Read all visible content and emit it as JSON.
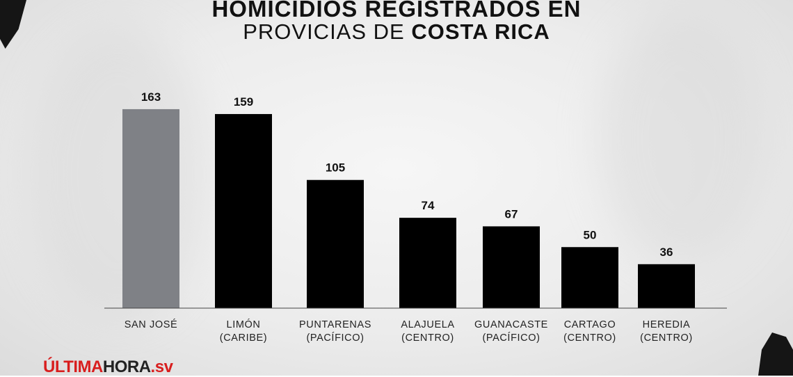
{
  "header": {
    "title_line1": "HOMICIDIOS REGISTRADOS EN",
    "title_line2_regular": "PROVICIAS DE",
    "title_line2_bold": "COSTA RICA"
  },
  "chart_data": {
    "type": "bar",
    "categories": [
      [
        "SAN JOSÉ"
      ],
      [
        "LIMÓN",
        "(CARIBE)"
      ],
      [
        "PUNTARENAS",
        "(PACÍFICO)"
      ],
      [
        "ALAJUELA",
        "(CENTRO)"
      ],
      [
        "GUANACASTE",
        "(PACÍFICO)"
      ],
      [
        "CARTAGO",
        "(CENTRO)"
      ],
      [
        "HEREDIA",
        "(CENTRO)"
      ]
    ],
    "values": [
      163,
      159,
      105,
      74,
      67,
      50,
      36
    ],
    "data_labels": [
      "163",
      "159",
      "105",
      "74",
      "67",
      "50",
      "36"
    ],
    "bar_colors": [
      "#7f8186",
      "#000000",
      "#000000",
      "#000000",
      "#000000",
      "#000000",
      "#000000"
    ],
    "ylim": [
      0,
      170
    ],
    "grid": false,
    "legend": "none"
  },
  "branding": {
    "logo_red": "ÚLTIMA",
    "logo_dark": "HORA",
    "logo_suffix": ".sv",
    "accent_color": "#d81e1e"
  }
}
